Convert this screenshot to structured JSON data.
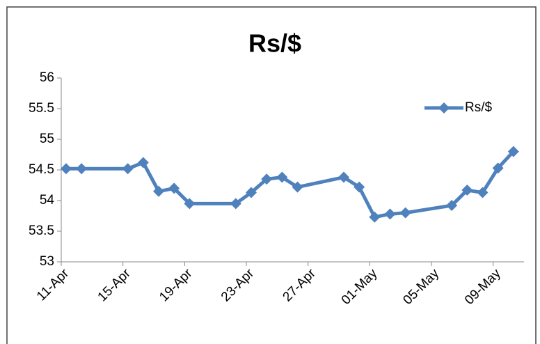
{
  "chart_data": {
    "type": "line",
    "title": "Rs/$",
    "x": [
      "11-Apr",
      "12-Apr",
      "15-Apr",
      "16-Apr",
      "17-Apr",
      "18-Apr",
      "19-Apr",
      "22-Apr",
      "23-Apr",
      "24-Apr",
      "25-Apr",
      "26-Apr",
      "29-Apr",
      "30-Apr",
      "01-May",
      "02-May",
      "03-May",
      "06-May",
      "07-May",
      "08-May",
      "09-May",
      "10-May"
    ],
    "series": [
      {
        "name": "Rs/$",
        "color": "#4f81bd",
        "values": [
          54.52,
          54.52,
          54.52,
          54.62,
          54.15,
          54.2,
          53.95,
          53.95,
          54.13,
          54.35,
          54.38,
          54.22,
          54.38,
          54.22,
          53.73,
          53.78,
          53.8,
          53.92,
          54.17,
          54.13,
          54.53,
          54.8
        ]
      }
    ],
    "xlim": [
      "11-Apr",
      "11-May"
    ],
    "xticks": [
      "11-Apr",
      "15-Apr",
      "19-Apr",
      "23-Apr",
      "27-Apr",
      "01-May",
      "05-May",
      "09-May"
    ],
    "ylim": [
      53,
      56
    ],
    "yticks": [
      53,
      53.5,
      54,
      54.5,
      55,
      55.5,
      56
    ],
    "legend": "upper right"
  }
}
